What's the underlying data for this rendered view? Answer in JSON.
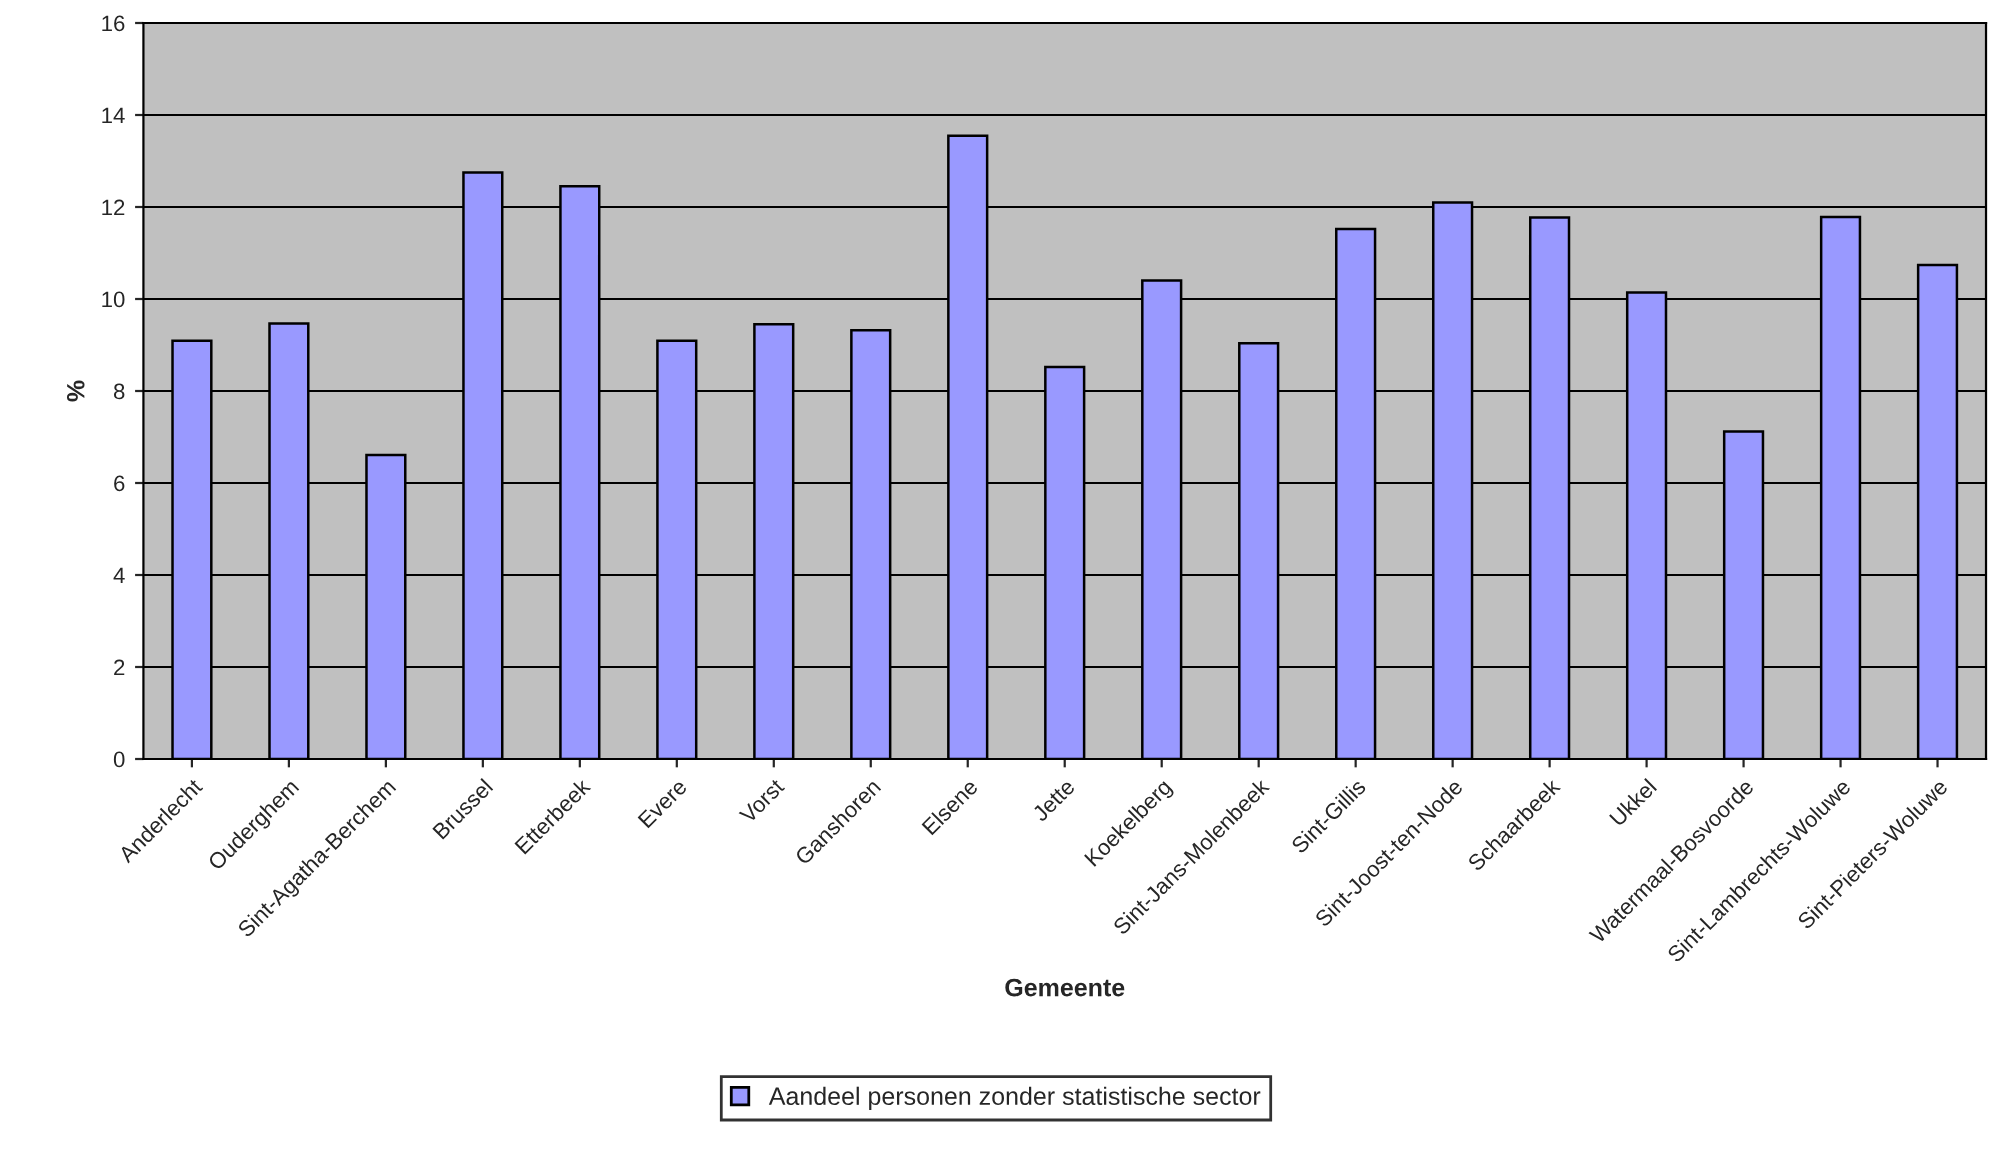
{
  "chart_data": {
    "type": "bar",
    "xlabel": "Gemeente",
    "ylabel": "%",
    "categories": [
      "Anderlecht",
      "Ouderghem",
      "Sint-Agatha-Berchem",
      "Brussel",
      "Etterbeek",
      "Evere",
      "Vorst",
      "Ganshoren",
      "Elsene",
      "Jette",
      "Koekelberg",
      "Sint-Jans-Molenbeek",
      "Sint-Gillis",
      "Sint-Joost-ten-Node",
      "Schaarbeek",
      "Ukkel",
      "Watermaal-Bosvoorde",
      "Sint-Lambrechts-Woluwe",
      "Sint-Pieters-Woluwe"
    ],
    "series": [
      {
        "name": "Aandeel personen zonder statistische sector",
        "color": "#9999ff",
        "values": [
          9.09,
          9.47,
          6.61,
          12.75,
          12.45,
          9.09,
          9.45,
          9.32,
          13.55,
          8.52,
          10.4,
          9.04,
          11.52,
          12.1,
          11.77,
          10.14,
          7.12,
          11.78,
          10.74
        ]
      }
    ],
    "ylim": [
      0,
      16
    ],
    "yticks": [
      0,
      2,
      4,
      6,
      8,
      10,
      12,
      14,
      16
    ],
    "grid": "y",
    "legend": "bottom"
  }
}
